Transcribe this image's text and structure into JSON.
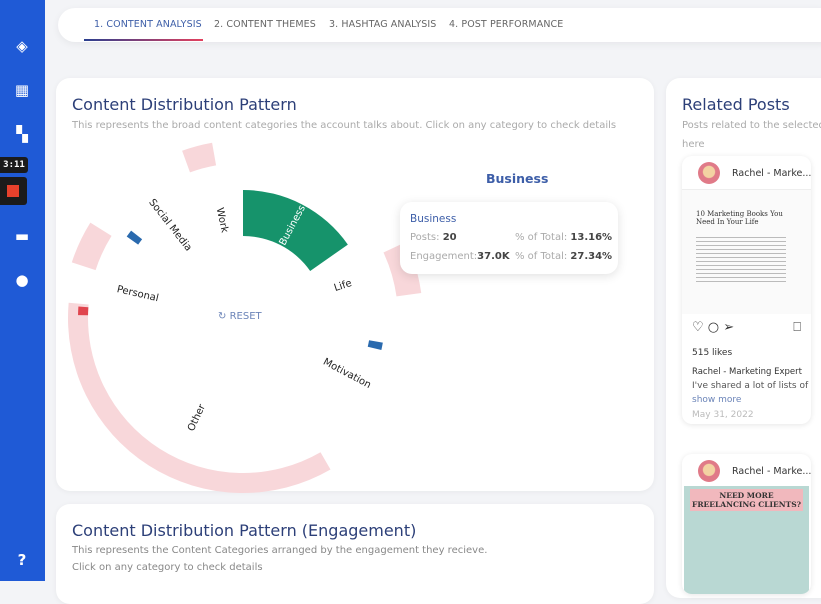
{
  "sidebar": {
    "icons": [
      "layers-icon",
      "calendar-icon",
      "dashboard-icon",
      "briefcase-icon",
      "account-icon",
      "help-icon"
    ],
    "help_label": "?",
    "color": "#1f5ad6"
  },
  "recorder": {
    "time": "3:11"
  },
  "tabs": [
    {
      "label": "1. CONTENT ANALYSIS",
      "active": true
    },
    {
      "label": "2. CONTENT THEMES"
    },
    {
      "label": "3. HASHTAG ANALYSIS"
    },
    {
      "label": "4. POST PERFORMANCE"
    }
  ],
  "distribution": {
    "title": "Content Distribution Pattern",
    "subtitle": "This represents the broad content categories the account talks about. Click on any category to check details",
    "reset_label": "RESET",
    "categories": [
      "Business",
      "Life",
      "Motivation",
      "Other",
      "Personal",
      "Social Media",
      "Work"
    ],
    "selected": "Business",
    "selected_color": "#16936b",
    "tooltip": {
      "name": "Business",
      "posts_label": "Posts:",
      "posts": "20",
      "pct1_label": "% of Total:",
      "pct1": "13.16%",
      "eng_label": "Engagement:",
      "engagement": "37.0K",
      "pct2_label": "% of Total:",
      "pct2": "27.34%"
    }
  },
  "engagement": {
    "title": "Content Distribution Pattern (Engagement)",
    "subtitle": "This represents the Content Categories arranged by the engagement they recieve.",
    "subtitle2": "Click on any category to check details"
  },
  "related": {
    "title": "Related Posts",
    "subtitle": "Posts related to the selected",
    "subtitle2": "here",
    "posts": [
      {
        "author": "Rachel - Marke...",
        "image_title": "10 Marketing Books You Need In Your Life",
        "likes": "515 likes",
        "caption_author": "Rachel - Marketing Expert",
        "caption": "I've shared a lot of lists of",
        "more": "show more",
        "date": "May 31, 2022"
      },
      {
        "author": "Rachel - Marke...",
        "image_title": "NEED MORE FREELANCING CLIENTS?"
      }
    ]
  }
}
